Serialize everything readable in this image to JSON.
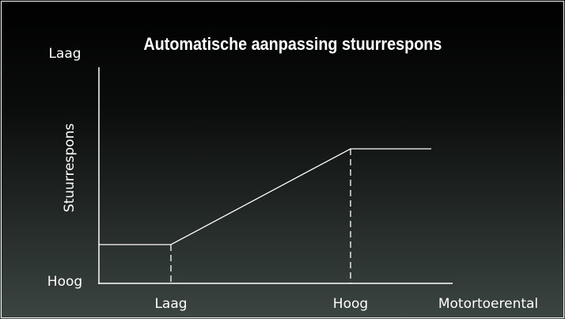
{
  "title": "Automatische aanpassing stuurrespons",
  "y_axis": {
    "label": "Stuurrespons",
    "top": "Laag",
    "bottom": "Hoog"
  },
  "x_axis": {
    "label": "Motortoerental",
    "ticks": [
      "Laag",
      "Hoog"
    ]
  }
}
